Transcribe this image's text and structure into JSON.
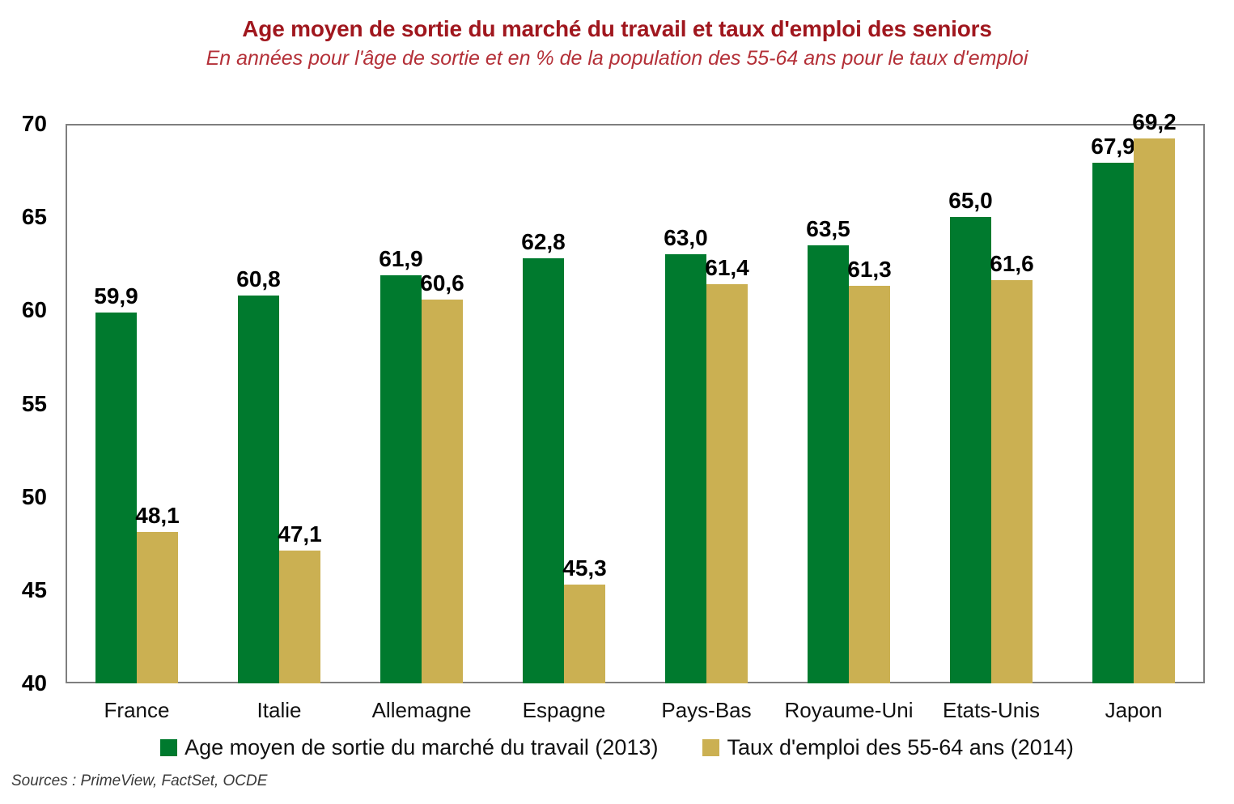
{
  "header": {
    "title": "Age moyen de sortie du marché du travail et taux d'emploi des seniors",
    "subtitle": "En années pour l'âge de sortie et en % de la population des 55-64 ans pour le taux d'emploi"
  },
  "chart_data": {
    "type": "bar",
    "title": "Age moyen de sortie du marché du travail et taux d'emploi des seniors",
    "subtitle": "En années pour l'âge de sortie et en % de la population des 55-64 ans pour le taux d'emploi",
    "categories": [
      "France",
      "Italie",
      "Allemagne",
      "Espagne",
      "Pays-Bas",
      "Royaume-Uni",
      "Etats-Unis",
      "Japon"
    ],
    "series": [
      {
        "name": "Age moyen de sortie du marché du travail (2013)",
        "color": "#007A2E",
        "values": [
          59.9,
          60.8,
          61.9,
          62.8,
          63.0,
          63.5,
          65.0,
          67.9
        ],
        "labels": [
          "59,9",
          "60,8",
          "61,9",
          "62,8",
          "63,0",
          "63,5",
          "65,0",
          "67,9"
        ]
      },
      {
        "name": "Taux d'emploi des 55-64 ans (2014)",
        "color": "#CBB052",
        "values": [
          48.1,
          47.1,
          60.6,
          45.3,
          61.4,
          61.3,
          61.6,
          69.2
        ],
        "labels": [
          "48,1",
          "47,1",
          "60,6",
          "45,3",
          "61,4",
          "61,3",
          "61,6",
          "69,2"
        ]
      }
    ],
    "ylim": [
      40,
      70
    ],
    "yticks": [
      40,
      45,
      50,
      55,
      60,
      65,
      70
    ],
    "grid": "horizontal",
    "legend_position": "bottom",
    "decimal_separator": ","
  },
  "footer": {
    "sources": "Sources : PrimeView, FactSet, OCDE"
  },
  "colors": {
    "series_green": "#007A2E",
    "series_gold": "#CBB052",
    "title_red": "#A0171E",
    "subtitle_red": "#B43038",
    "gridline": "#BFBFBF",
    "plot_border": "#7F7F7F"
  }
}
